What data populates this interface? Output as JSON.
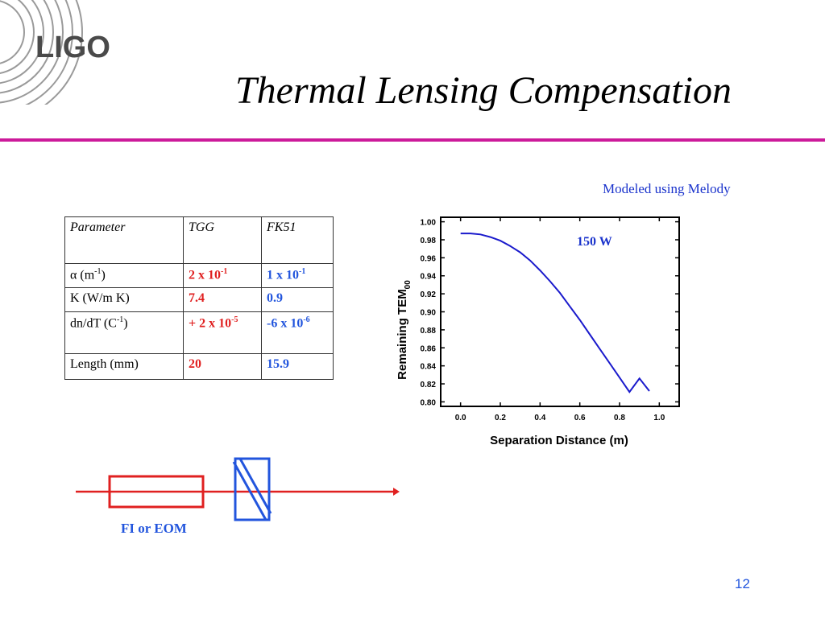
{
  "logo": {
    "text": "LIGO"
  },
  "title": "Thermal Lensing Compensation",
  "note": "Modeled using Melody",
  "table": {
    "header": [
      "Parameter",
      "TGG",
      "FK51"
    ],
    "rows": [
      {
        "param": "α (m",
        "param_sup": "-1",
        "param_suffix": ")",
        "tgg": "2 x 10",
        "tgg_sup": "-1",
        "fk51": "1 x 10",
        "fk51_sup": "-1"
      },
      {
        "param": "K (W/m K)",
        "param_sup": "",
        "param_suffix": "",
        "tgg": "7.4",
        "tgg_sup": "",
        "fk51": "0.9",
        "fk51_sup": ""
      },
      {
        "param": "dn/dT (C",
        "param_sup": "-1",
        "param_suffix": ")",
        "tgg": "+ 2 x 10",
        "tgg_sup": "-5",
        "fk51": "-6 x 10",
        "fk51_sup": "-6"
      },
      {
        "param": "Length (mm)",
        "param_sup": "",
        "param_suffix": "",
        "tgg": "20",
        "tgg_sup": "",
        "fk51": "15.9",
        "fk51_sup": ""
      }
    ]
  },
  "chart_data": {
    "type": "line",
    "xlabel": "Separation Distance (m)",
    "ylabel": "Remaining TEM",
    "ylabel_sub": "00",
    "xlim": [
      -0.1,
      1.1
    ],
    "ylim": [
      0.795,
      1.005
    ],
    "xticks": [
      "0.0",
      "0.2",
      "0.4",
      "0.6",
      "0.8",
      "1.0"
    ],
    "yticks": [
      "1.00",
      "0.98",
      "0.96",
      "0.94",
      "0.92",
      "0.90",
      "0.88",
      "0.86",
      "0.84",
      "0.82",
      "0.80"
    ],
    "annotation": "150 W",
    "series": [
      {
        "color": "#1a1acc",
        "x": [
          0.0,
          0.05,
          0.1,
          0.15,
          0.2,
          0.25,
          0.3,
          0.35,
          0.4,
          0.45,
          0.5,
          0.55,
          0.6,
          0.65,
          0.7,
          0.75,
          0.8,
          0.85,
          0.9,
          0.95
        ],
        "y": [
          0.987,
          0.987,
          0.986,
          0.983,
          0.979,
          0.973,
          0.966,
          0.957,
          0.946,
          0.934,
          0.921,
          0.906,
          0.891,
          0.875,
          0.859,
          0.843,
          0.827,
          0.811,
          0.826,
          0.812
        ]
      }
    ]
  },
  "diagram": {
    "label": "FI or EOM"
  },
  "page_number": "12"
}
